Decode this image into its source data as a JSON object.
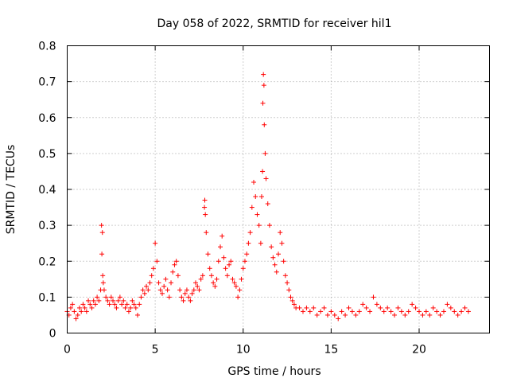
{
  "chart_data": {
    "type": "scatter",
    "title": "Day 058 of 2022, SRMTID for receiver hil1",
    "xlabel": "GPS time / hours",
    "ylabel": "SRMTID / TECUs",
    "xlim": [
      0,
      24
    ],
    "ylim": [
      0,
      0.8
    ],
    "x_ticks": [
      "0",
      "5",
      "10",
      "15",
      "20"
    ],
    "y_ticks": [
      "0",
      "0.1",
      "0.2",
      "0.3",
      "0.4",
      "0.5",
      "0.6",
      "0.7",
      "0.8"
    ],
    "grid": true,
    "marker": "plus",
    "color": "#ff0000",
    "series": [
      {
        "name": "SRMTID",
        "x": [
          0.0,
          0.1,
          0.2,
          0.3,
          0.4,
          0.5,
          0.6,
          0.7,
          0.8,
          0.9,
          1.0,
          1.1,
          1.2,
          1.3,
          1.4,
          1.5,
          1.6,
          1.7,
          1.8,
          1.9,
          1.95,
          1.97,
          2.0,
          2.02,
          2.05,
          2.1,
          2.2,
          2.3,
          2.4,
          2.5,
          2.6,
          2.7,
          2.8,
          2.9,
          3.0,
          3.1,
          3.2,
          3.3,
          3.4,
          3.5,
          3.6,
          3.7,
          3.8,
          3.9,
          4.0,
          4.1,
          4.2,
          4.3,
          4.4,
          4.5,
          4.6,
          4.7,
          4.8,
          4.9,
          5.0,
          5.1,
          5.2,
          5.3,
          5.4,
          5.5,
          5.6,
          5.7,
          5.8,
          5.9,
          6.0,
          6.1,
          6.2,
          6.3,
          6.4,
          6.5,
          6.6,
          6.7,
          6.8,
          6.9,
          7.0,
          7.1,
          7.2,
          7.3,
          7.4,
          7.5,
          7.6,
          7.7,
          7.8,
          7.82,
          7.85,
          7.9,
          8.0,
          8.1,
          8.2,
          8.3,
          8.4,
          8.5,
          8.6,
          8.7,
          8.8,
          8.9,
          9.0,
          9.1,
          9.2,
          9.3,
          9.4,
          9.5,
          9.6,
          9.7,
          9.8,
          9.9,
          10.0,
          10.1,
          10.2,
          10.3,
          10.4,
          10.5,
          10.6,
          10.7,
          10.8,
          10.9,
          11.0,
          11.05,
          11.1,
          11.12,
          11.15,
          11.18,
          11.2,
          11.25,
          11.3,
          11.4,
          11.5,
          11.6,
          11.7,
          11.8,
          11.9,
          12.0,
          12.1,
          12.2,
          12.3,
          12.4,
          12.5,
          12.6,
          12.7,
          12.8,
          12.9,
          13.0,
          13.2,
          13.4,
          13.6,
          13.8,
          14.0,
          14.2,
          14.4,
          14.6,
          14.8,
          15.0,
          15.2,
          15.4,
          15.6,
          15.8,
          16.0,
          16.2,
          16.4,
          16.6,
          16.8,
          17.0,
          17.2,
          17.4,
          17.6,
          17.8,
          18.0,
          18.2,
          18.4,
          18.6,
          18.8,
          19.0,
          19.2,
          19.4,
          19.6,
          19.8,
          20.0,
          20.2,
          20.4,
          20.6,
          20.8,
          21.0,
          21.2,
          21.4,
          21.6,
          21.8,
          22.0,
          22.2,
          22.4,
          22.6,
          22.8
        ],
        "y": [
          0.06,
          0.05,
          0.07,
          0.08,
          0.06,
          0.04,
          0.05,
          0.07,
          0.06,
          0.08,
          0.07,
          0.06,
          0.09,
          0.08,
          0.07,
          0.09,
          0.08,
          0.1,
          0.09,
          0.12,
          0.3,
          0.22,
          0.28,
          0.16,
          0.14,
          0.12,
          0.1,
          0.09,
          0.08,
          0.1,
          0.09,
          0.08,
          0.07,
          0.09,
          0.1,
          0.08,
          0.09,
          0.07,
          0.08,
          0.06,
          0.07,
          0.09,
          0.08,
          0.07,
          0.05,
          0.08,
          0.1,
          0.12,
          0.11,
          0.13,
          0.12,
          0.14,
          0.16,
          0.18,
          0.25,
          0.2,
          0.14,
          0.12,
          0.11,
          0.13,
          0.15,
          0.12,
          0.1,
          0.14,
          0.17,
          0.19,
          0.2,
          0.16,
          0.12,
          0.1,
          0.09,
          0.11,
          0.12,
          0.1,
          0.09,
          0.11,
          0.12,
          0.14,
          0.13,
          0.12,
          0.15,
          0.16,
          0.35,
          0.37,
          0.33,
          0.28,
          0.22,
          0.18,
          0.16,
          0.14,
          0.13,
          0.15,
          0.2,
          0.24,
          0.27,
          0.21,
          0.18,
          0.16,
          0.19,
          0.2,
          0.15,
          0.14,
          0.13,
          0.1,
          0.12,
          0.15,
          0.18,
          0.2,
          0.22,
          0.25,
          0.28,
          0.35,
          0.42,
          0.38,
          0.33,
          0.3,
          0.25,
          0.38,
          0.45,
          0.64,
          0.72,
          0.69,
          0.58,
          0.5,
          0.43,
          0.36,
          0.3,
          0.24,
          0.21,
          0.19,
          0.17,
          0.22,
          0.28,
          0.25,
          0.2,
          0.16,
          0.14,
          0.12,
          0.1,
          0.09,
          0.08,
          0.07,
          0.07,
          0.06,
          0.07,
          0.06,
          0.07,
          0.05,
          0.06,
          0.07,
          0.05,
          0.06,
          0.05,
          0.04,
          0.06,
          0.05,
          0.07,
          0.06,
          0.05,
          0.06,
          0.08,
          0.07,
          0.06,
          0.1,
          0.08,
          0.07,
          0.06,
          0.07,
          0.06,
          0.05,
          0.07,
          0.06,
          0.05,
          0.06,
          0.08,
          0.07,
          0.06,
          0.05,
          0.06,
          0.05,
          0.07,
          0.06,
          0.05,
          0.06,
          0.08,
          0.07,
          0.06,
          0.05,
          0.06,
          0.07,
          0.06
        ]
      }
    ]
  }
}
